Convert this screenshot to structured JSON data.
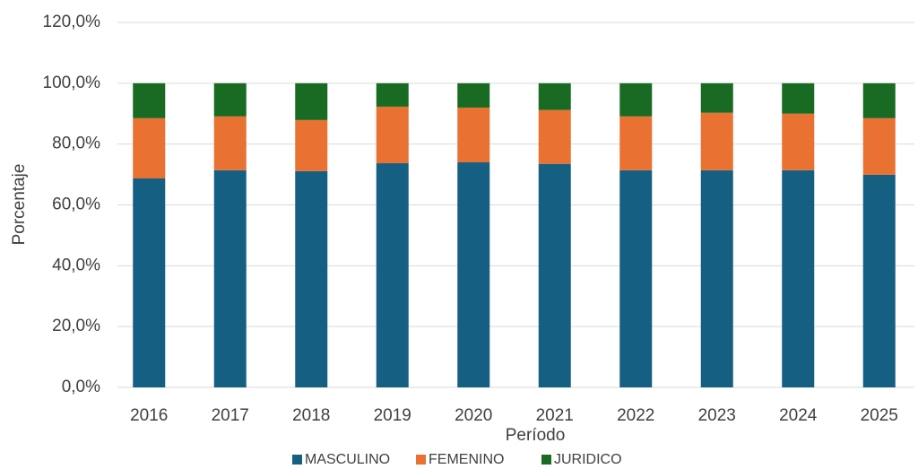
{
  "chart_data": {
    "type": "stacked_bar",
    "y_label": "Porcentaje",
    "x_label": "Período",
    "categories": [
      "2016",
      "2017",
      "2018",
      "2019",
      "2020",
      "2021",
      "2022",
      "2023",
      "2024",
      "2025"
    ],
    "series": [
      {
        "name": "MASCULINO",
        "color": "#156082",
        "values": [
          68.7,
          71.4,
          71.1,
          73.7,
          74.0,
          73.5,
          71.4,
          71.4,
          71.4,
          69.9
        ]
      },
      {
        "name": "FEMENINO",
        "color": "#e97132",
        "values": [
          19.8,
          17.7,
          16.8,
          18.6,
          18.0,
          17.7,
          17.7,
          18.9,
          18.6,
          18.6
        ]
      },
      {
        "name": "JURIDICO",
        "color": "#196b24",
        "values": [
          11.5,
          10.9,
          12.1,
          7.7,
          8.0,
          8.8,
          10.9,
          9.7,
          10.0,
          11.5
        ]
      }
    ],
    "ylim": [
      0,
      120
    ],
    "yticks": [
      {
        "value": 0,
        "label": "0,0%"
      },
      {
        "value": 20,
        "label": "20,0%"
      },
      {
        "value": 40,
        "label": "40,0%"
      },
      {
        "value": 60,
        "label": "60,0%"
      },
      {
        "value": 80,
        "label": "80,0%"
      },
      {
        "value": 100,
        "label": "100,0%"
      },
      {
        "value": 120,
        "label": "120,0%"
      }
    ],
    "grid": true,
    "legend": "bottom"
  }
}
